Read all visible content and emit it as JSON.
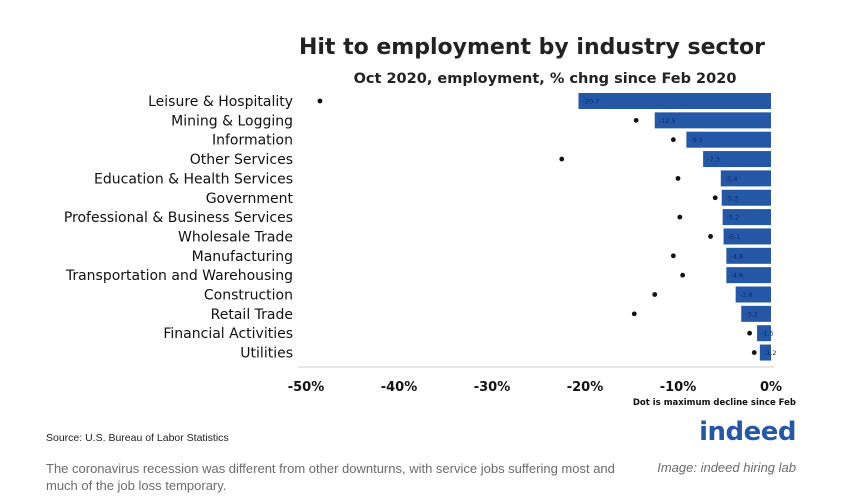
{
  "chart_data": {
    "type": "bar",
    "orientation": "horizontal",
    "title": "Hit to employment by industry sector",
    "subtitle": "Oct 2020, employment, % chng since Feb 2020",
    "categories": [
      "Leisure & Hospitality",
      "Mining & Logging",
      "Information",
      "Other Services",
      "Education & Health Services",
      "Government",
      "Professional & Business Services",
      "Wholesale Trade",
      "Manufacturing",
      "Transportation and Warehousing",
      "Construction",
      "Retail Trade",
      "Financial Activities",
      "Utilities"
    ],
    "values": [
      -20.7,
      -12.5,
      -9.1,
      -7.3,
      -5.4,
      -5.3,
      -5.2,
      -5.1,
      -4.8,
      -4.8,
      -3.8,
      -3.2,
      -1.5,
      -1.2
    ],
    "value_labels": [
      "-20.7",
      "-12.5",
      "-9.1",
      "-7.3",
      "-5.4",
      "-5.3",
      "-5.2",
      "-5.1",
      "-4.8",
      "-4.8",
      "-3.8",
      "-3.2",
      "-1.5",
      "-1.2"
    ],
    "max_decline": [
      -48.5,
      -14.5,
      -10.5,
      -22.5,
      -10.0,
      -6.0,
      -9.8,
      -6.5,
      -10.5,
      -9.5,
      -12.5,
      -14.7,
      -2.3,
      -1.8
    ],
    "xlim": [
      -50,
      0
    ],
    "xticks": [
      -50,
      -40,
      -30,
      -20,
      -10,
      0
    ],
    "xtick_labels": [
      "-50%",
      "-40%",
      "-30%",
      "-20%",
      "-10%",
      "0%"
    ],
    "bar_color": "#2557a7",
    "dot_color": "#111111",
    "grid": false,
    "note": "Dot is maximum decline since Feb"
  },
  "source": "Source: U.S. Bureau of Labor Statistics",
  "logo_text": "indeed",
  "caption": "The coronavirus recession was different from other downturns, with service jobs suffering most and much of the job loss temporary.",
  "credit": "Image: indeed hiring lab"
}
